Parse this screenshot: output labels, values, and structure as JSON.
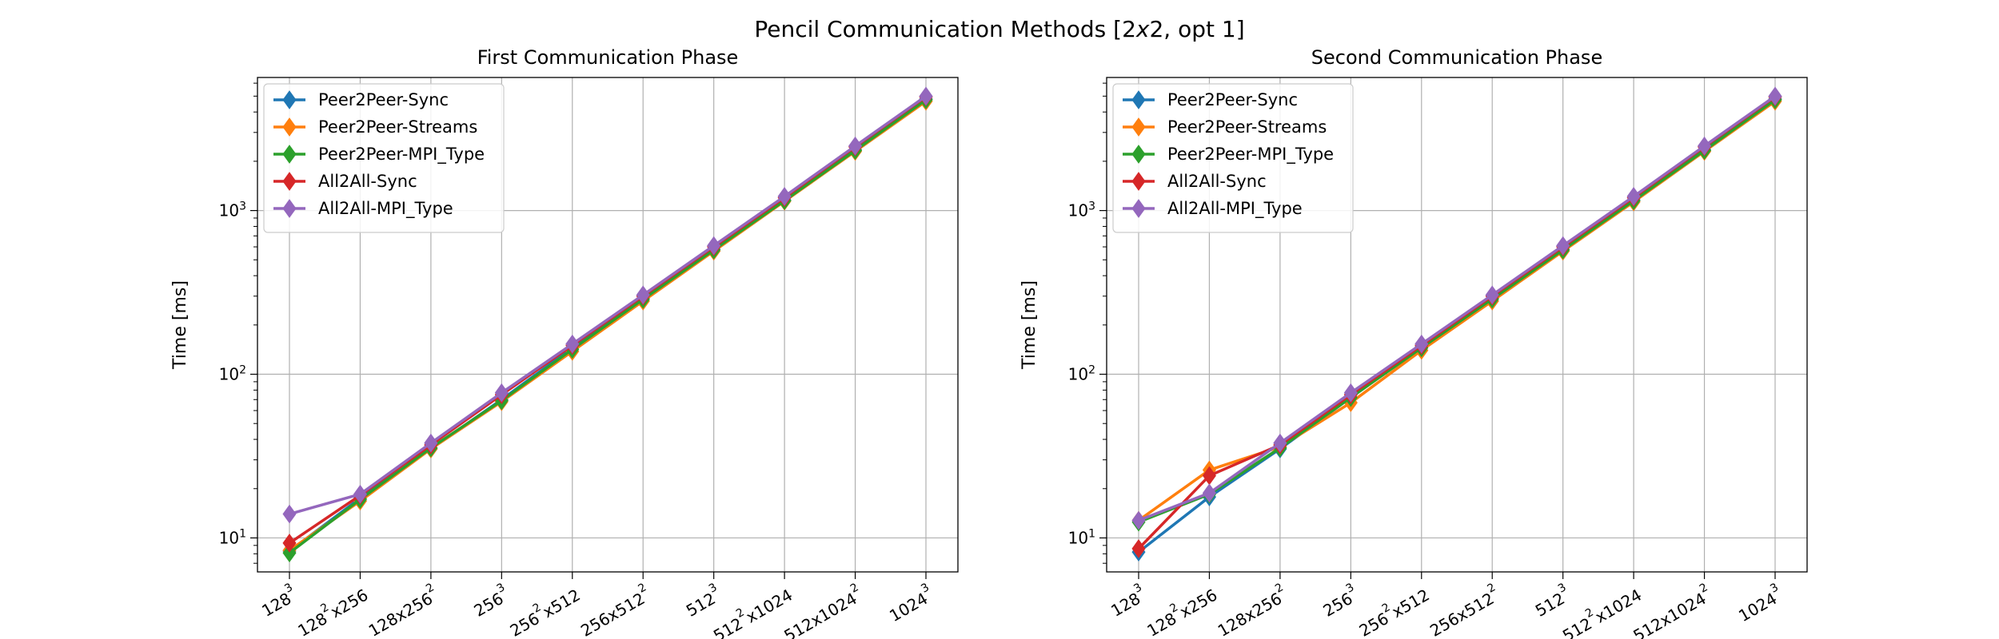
{
  "figure_title": "Pencil Communication Methods [2x2, opt 1]",
  "categories": [
    "128^3",
    "128^2x256",
    "128x256^2",
    "256^3",
    "256^2x512",
    "256x512^2",
    "512^3",
    "512^2x1024",
    "512x1024^2",
    "1024^3"
  ],
  "series_styles": [
    {
      "name": "Peer2Peer-Sync",
      "color": "#1f77b4"
    },
    {
      "name": "Peer2Peer-Streams",
      "color": "#ff7f0e"
    },
    {
      "name": "Peer2Peer-MPI_Type",
      "color": "#2ca02c"
    },
    {
      "name": "All2All-Sync",
      "color": "#d62728"
    },
    {
      "name": "All2All-MPI_Type",
      "color": "#9467bd"
    }
  ],
  "chart_data": [
    {
      "type": "line",
      "title": "First Communication Phase",
      "xlabel": "",
      "ylabel": "Time [ms]",
      "yscale": "log",
      "ylim": [
        6.2,
        6500
      ],
      "yticks": [
        10,
        100,
        1000
      ],
      "ytick_labels": [
        "10^1",
        "10^2",
        "10^3"
      ],
      "grid": true,
      "legend": "upper-left",
      "series": [
        {
          "name": "Peer2Peer-Sync",
          "values": [
            8.3,
            17.5,
            35,
            70,
            145,
            290,
            580,
            1160,
            2350,
            4800
          ]
        },
        {
          "name": "Peer2Peer-Streams",
          "values": [
            8.4,
            16.8,
            35,
            68,
            138,
            280,
            565,
            1140,
            2300,
            4650
          ]
        },
        {
          "name": "Peer2Peer-MPI_Type",
          "values": [
            8.1,
            17.2,
            35.5,
            69,
            142,
            287,
            575,
            1150,
            2330,
            4750
          ]
        },
        {
          "name": "All2All-Sync",
          "values": [
            9.3,
            18.2,
            37,
            75,
            150,
            300,
            600,
            1200,
            2450,
            4950
          ]
        },
        {
          "name": "All2All-MPI_Type",
          "values": [
            14,
            18.5,
            38,
            77,
            153,
            305,
            610,
            1220,
            2480,
            5000
          ]
        }
      ]
    },
    {
      "type": "line",
      "title": "Second Communication Phase",
      "xlabel": "",
      "ylabel": "Time [ms]",
      "yscale": "log",
      "ylim": [
        6.2,
        6500
      ],
      "yticks": [
        10,
        100,
        1000
      ],
      "ytick_labels": [
        "10^1",
        "10^2",
        "10^3"
      ],
      "grid": true,
      "legend": "upper-left",
      "series": [
        {
          "name": "Peer2Peer-Sync",
          "values": [
            8.2,
            17.8,
            35,
            72,
            147,
            290,
            580,
            1160,
            2350,
            4800
          ]
        },
        {
          "name": "Peer2Peer-Streams",
          "values": [
            12.8,
            26,
            36,
            67,
            140,
            280,
            565,
            1130,
            2300,
            4650
          ]
        },
        {
          "name": "Peer2Peer-MPI_Type",
          "values": [
            12.5,
            18.5,
            35.5,
            72,
            145,
            288,
            575,
            1150,
            2330,
            4750
          ]
        },
        {
          "name": "All2All-Sync",
          "values": [
            8.6,
            24,
            37,
            75,
            150,
            300,
            600,
            1200,
            2450,
            4950
          ]
        },
        {
          "name": "All2All-MPI_Type",
          "values": [
            12.8,
            18.8,
            38,
            77,
            153,
            305,
            610,
            1220,
            2480,
            5000
          ]
        }
      ]
    }
  ]
}
